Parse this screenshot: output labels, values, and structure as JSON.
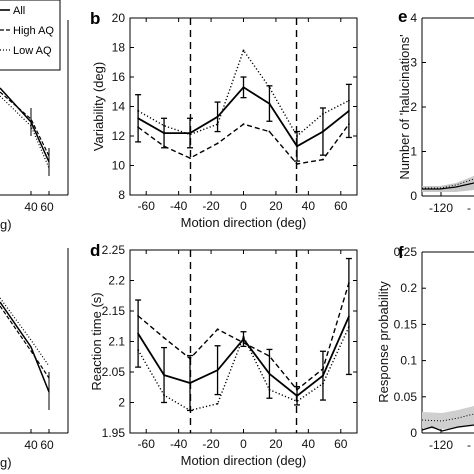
{
  "panels": {
    "a_top": {
      "ticks": [
        "40",
        "60"
      ],
      "xlabel_fragment": "g)"
    },
    "a_bottom": {
      "ticks": [
        "40",
        "60"
      ],
      "xlabel_fragment": "g)"
    },
    "e": {
      "letter": "e",
      "ylabel": "Number of 'halucinations'",
      "yticks": [
        "0",
        "1",
        "2",
        "3",
        "4"
      ],
      "xticks": [
        "-120",
        "-"
      ]
    },
    "f": {
      "letter": "f",
      "ylabel": "Response probability",
      "yticks": [
        "0",
        "0.05",
        "0.1",
        "0.15",
        "0.2",
        "0.25"
      ],
      "xticks": [
        "-120",
        "-"
      ]
    }
  },
  "legend": [
    "All",
    "High AQ",
    "Low AQ"
  ],
  "chart_data": [
    {
      "panel": "b",
      "type": "line",
      "letter": "b",
      "xlabel": "Motion direction (deg)",
      "ylabel": "Variability (deg)",
      "xlim": [
        -70,
        70
      ],
      "ylim": [
        8,
        20
      ],
      "xticks": [
        -60,
        -40,
        -20,
        0,
        20,
        40,
        60
      ],
      "yticks": [
        8,
        10,
        12,
        14,
        16,
        18,
        20
      ],
      "vlines": [
        -32.7,
        32.7
      ],
      "x": [
        -65,
        -49,
        -33,
        -16,
        0,
        16,
        33,
        49,
        65
      ],
      "series": [
        {
          "name": "All",
          "style": "solid",
          "values": [
            13.2,
            12.2,
            12.2,
            13.3,
            15.3,
            14.2,
            11.3,
            12.3,
            13.7
          ],
          "err": [
            1.6,
            1.0,
            1.0,
            1.0,
            0.7,
            1.2,
            1.0,
            1.6,
            1.8
          ]
        },
        {
          "name": "High AQ",
          "style": "dashed",
          "values": [
            12.6,
            11.3,
            10.5,
            11.5,
            12.8,
            12.3,
            10.1,
            10.4,
            12.8
          ],
          "err": [
            0,
            0,
            0,
            0,
            0,
            0,
            0,
            0,
            0
          ]
        },
        {
          "name": "Low AQ",
          "style": "dotted",
          "values": [
            13.7,
            12.7,
            12.1,
            12.8,
            17.8,
            15.3,
            12.0,
            13.5,
            14.4
          ],
          "err": [
            0,
            0,
            0,
            0,
            0,
            0,
            0,
            0,
            0
          ]
        }
      ]
    },
    {
      "panel": "d",
      "type": "line",
      "letter": "d",
      "xlabel": "Motion direction (deg)",
      "ylabel": "Reaction time (s)",
      "xlim": [
        -70,
        70
      ],
      "ylim": [
        1.95,
        2.25
      ],
      "xticks": [
        -60,
        -40,
        -20,
        0,
        20,
        40,
        60
      ],
      "yticks": [
        1.95,
        2,
        2.05,
        2.1,
        2.15,
        2.2,
        2.25
      ],
      "ytick_labels": [
        "1.95",
        "2",
        "2.05",
        "2.1",
        "2.15",
        "2.2",
        "2.25"
      ],
      "vlines": [
        -32.7,
        32.7
      ],
      "x": [
        -65,
        -49,
        -33,
        -16,
        0,
        16,
        33,
        49,
        65
      ],
      "series": [
        {
          "name": "All",
          "style": "solid",
          "values": [
            2.113,
            2.045,
            2.032,
            2.053,
            2.104,
            2.047,
            2.011,
            2.044,
            2.141
          ],
          "err": [
            0.055,
            0.045,
            0.045,
            0.04,
            0.012,
            0.04,
            0.015,
            0.04,
            0.095
          ]
        },
        {
          "name": "High AQ",
          "style": "dashed",
          "values": [
            2.142,
            2.106,
            2.072,
            2.12,
            2.098,
            2.076,
            2.021,
            2.055,
            2.196
          ],
          "err": [
            0,
            0,
            0,
            0,
            0,
            0,
            0,
            0,
            0
          ]
        },
        {
          "name": "Low AQ",
          "style": "dotted",
          "values": [
            2.086,
            2.012,
            1.987,
            1.998,
            2.108,
            2.021,
            2.002,
            2.031,
            2.124
          ],
          "err": [
            0,
            0,
            0,
            0,
            0,
            0,
            0,
            0,
            0
          ]
        }
      ]
    }
  ]
}
